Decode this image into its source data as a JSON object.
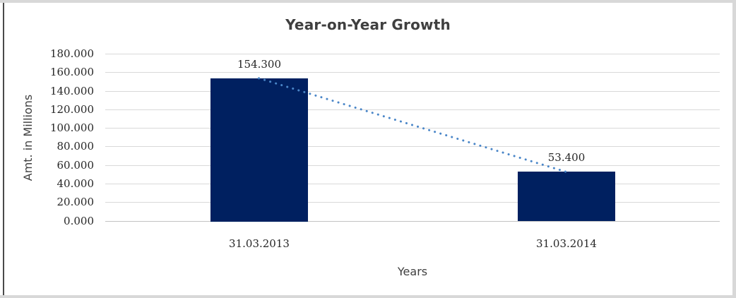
{
  "frame": {
    "background": "#ffffff",
    "border_color": "#d8d8d8",
    "left_edge_color": "#4a4a4a"
  },
  "chart_data": {
    "type": "bar",
    "title": "Year-on-Year Growth",
    "xlabel": "Years",
    "ylabel": "Amt. in Millions",
    "categories": [
      "31.03.2013",
      "31.03.2014"
    ],
    "series": [
      {
        "name": "Amt. in Millions",
        "values": [
          154.3,
          53.4
        ],
        "value_labels": [
          "154.300",
          "53.400"
        ]
      }
    ],
    "ylim": [
      0,
      180
    ],
    "ytick_step": 20,
    "ytick_labels": [
      "0.000",
      "20.000",
      "40.000",
      "60.000",
      "80.000",
      "100.000",
      "120.000",
      "140.000",
      "160.000",
      "180.000"
    ],
    "grid": true,
    "legend": "none",
    "bar_color": "#002060",
    "gridline_color": "#d9d9d9",
    "axis_line_color": "#c3c3c3",
    "text_color": "#3f3f3f",
    "label_color": "#262626",
    "trendline": {
      "style": "dotted",
      "color": "#4a86c8",
      "from_value": 154.3,
      "to_value": 53.4
    }
  }
}
